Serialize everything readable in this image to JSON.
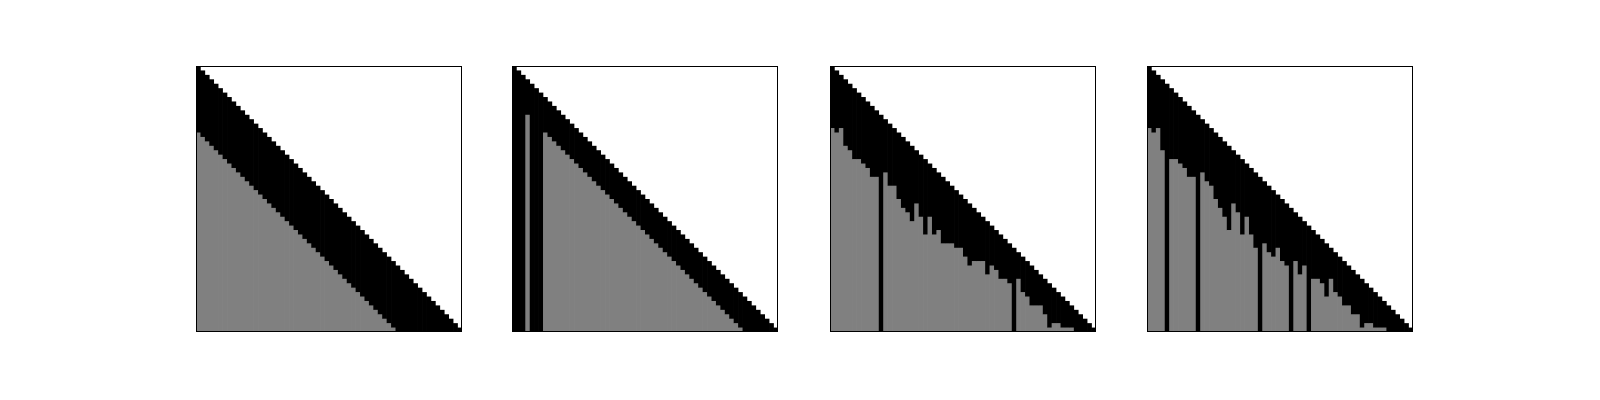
{
  "chart_data": [
    {
      "type": "heatmap",
      "n": 60,
      "colors": {
        "diagonal": "#000000",
        "fill": "#808080",
        "background": "#ffffff"
      },
      "diagonal_band_width": 15,
      "black_columns": [],
      "column_fill_start": [],
      "title": "",
      "xlabel": "",
      "ylabel": ""
    },
    {
      "type": "heatmap",
      "n": 60,
      "colors": {
        "diagonal": "#000000",
        "fill": "#808080",
        "background": "#ffffff"
      },
      "diagonal_band_width": 8,
      "black_columns": [
        0,
        1,
        2,
        4,
        5,
        6
      ],
      "column_fill_start": [],
      "title": "",
      "xlabel": "",
      "ylabel": ""
    },
    {
      "type": "heatmap",
      "n": 60,
      "colors": {
        "diagonal": "#000000",
        "fill": "#808080",
        "background": "#ffffff"
      },
      "diagonal_band_width": 1,
      "black_columns": [
        11,
        41
      ],
      "column_fill_start": [
        14,
        15,
        14,
        18,
        19,
        21,
        21,
        22,
        23,
        25,
        25,
        24,
        24,
        27,
        27,
        30,
        32,
        33,
        35,
        31,
        34,
        38,
        34,
        38,
        37,
        40,
        40,
        40,
        41,
        41,
        43,
        45,
        44,
        44,
        44,
        47,
        45,
        46,
        48,
        48,
        49,
        52,
        48,
        51,
        52,
        54,
        54,
        54,
        56,
        59,
        58,
        58,
        59,
        59,
        59,
        60,
        60,
        60,
        60,
        60
      ],
      "title": "",
      "xlabel": "",
      "ylabel": ""
    },
    {
      "type": "heatmap",
      "n": 60,
      "colors": {
        "diagonal": "#000000",
        "fill": "#808080",
        "background": "#ffffff"
      },
      "diagonal_band_width": 1,
      "black_columns": [
        4,
        11,
        25,
        32,
        36
      ],
      "column_fill_start": [
        14,
        15,
        14,
        19,
        18,
        21,
        21,
        22,
        23,
        25,
        25,
        24,
        24,
        26,
        27,
        30,
        32,
        34,
        37,
        31,
        33,
        38,
        34,
        38,
        41,
        40,
        40,
        42,
        43,
        41,
        44,
        45,
        44,
        44,
        47,
        45,
        46,
        48,
        48,
        49,
        52,
        48,
        51,
        52,
        54,
        54,
        56,
        56,
        59,
        58,
        58,
        59,
        59,
        59,
        60,
        60,
        60,
        60,
        60,
        60
      ],
      "title": "",
      "xlabel": "",
      "ylabel": ""
    }
  ]
}
